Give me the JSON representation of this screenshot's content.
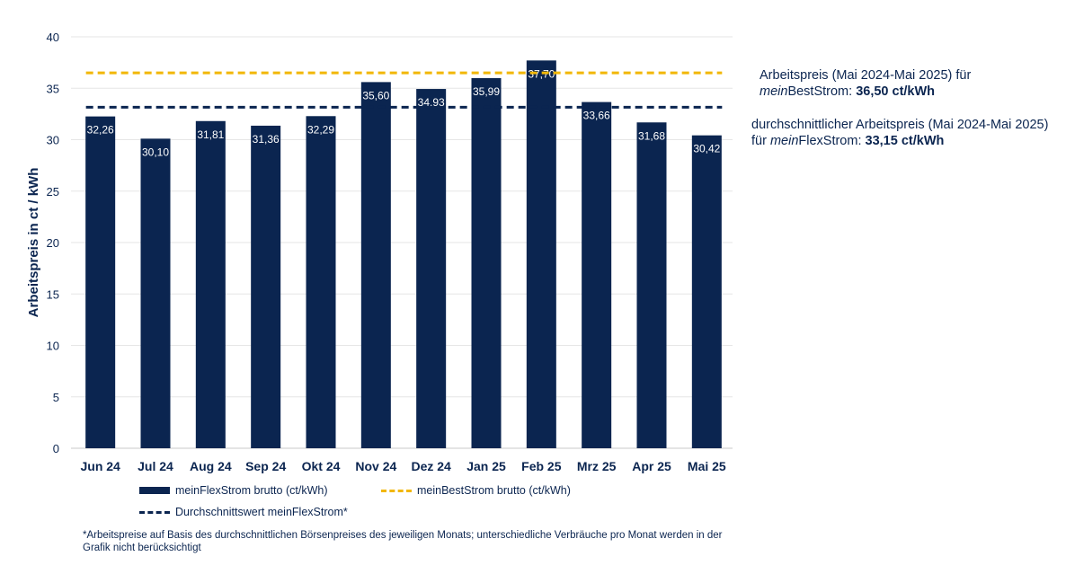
{
  "chart_data": {
    "type": "bar",
    "ylabel": "Arbeitspreis in ct / kWh",
    "ylim": [
      0,
      40
    ],
    "yticks": [
      "0",
      "5",
      "10",
      "15",
      "20",
      "25",
      "30",
      "35",
      "40"
    ],
    "grid": true,
    "categories": [
      "Jun 24",
      "Jul 24",
      "Aug 24",
      "Sep 24",
      "Okt 24",
      "Nov 24",
      "Dez 24",
      "Jan 25",
      "Feb 25",
      "Mrz 25",
      "Apr 25",
      "Mai 25"
    ],
    "series": [
      {
        "name": "meinFlexStrom brutto (ct/kWh)",
        "kind": "bar",
        "color": "#0b2550",
        "values": [
          32.26,
          30.1,
          31.81,
          31.36,
          32.29,
          35.6,
          34.93,
          35.99,
          37.7,
          33.66,
          31.68,
          30.42
        ],
        "labels": [
          "32,26",
          "30,10",
          "31,81",
          "31,36",
          "32,29",
          "35,60",
          "34,93",
          "35,99",
          "37,70",
          "33,66",
          "31,68",
          "30,42"
        ]
      },
      {
        "name": "meinBestStrom brutto (ct/kWh)",
        "kind": "line-dashed",
        "color": "#f2b705",
        "value": 36.5
      },
      {
        "name": "Durchschnittswert meinFlexStrom*",
        "kind": "line-dashed",
        "color": "#0b2550",
        "value": 33.15
      }
    ],
    "legend_placement": "bottom"
  },
  "annotations": {
    "best": {
      "line1": "Arbeitspreis (Mai 2024-Mai 2025) für",
      "italic": "mein",
      "brand": "BestStrom: ",
      "value": "36,50 ct/kWh"
    },
    "avg": {
      "line1": "durchschnittlicher Arbeitspreis (Mai 2024-Mai 2025) für ",
      "italic": "mein",
      "brand": "FlexStrom: ",
      "value": "33,15 ct/kWh"
    }
  },
  "footnote": "*Arbeitspreise auf Basis des durchschnittlichen Börsenpreises des jeweiligen Monats; unterschiedliche Verbräuche pro Monat werden in der Grafik nicht berücksichtigt"
}
